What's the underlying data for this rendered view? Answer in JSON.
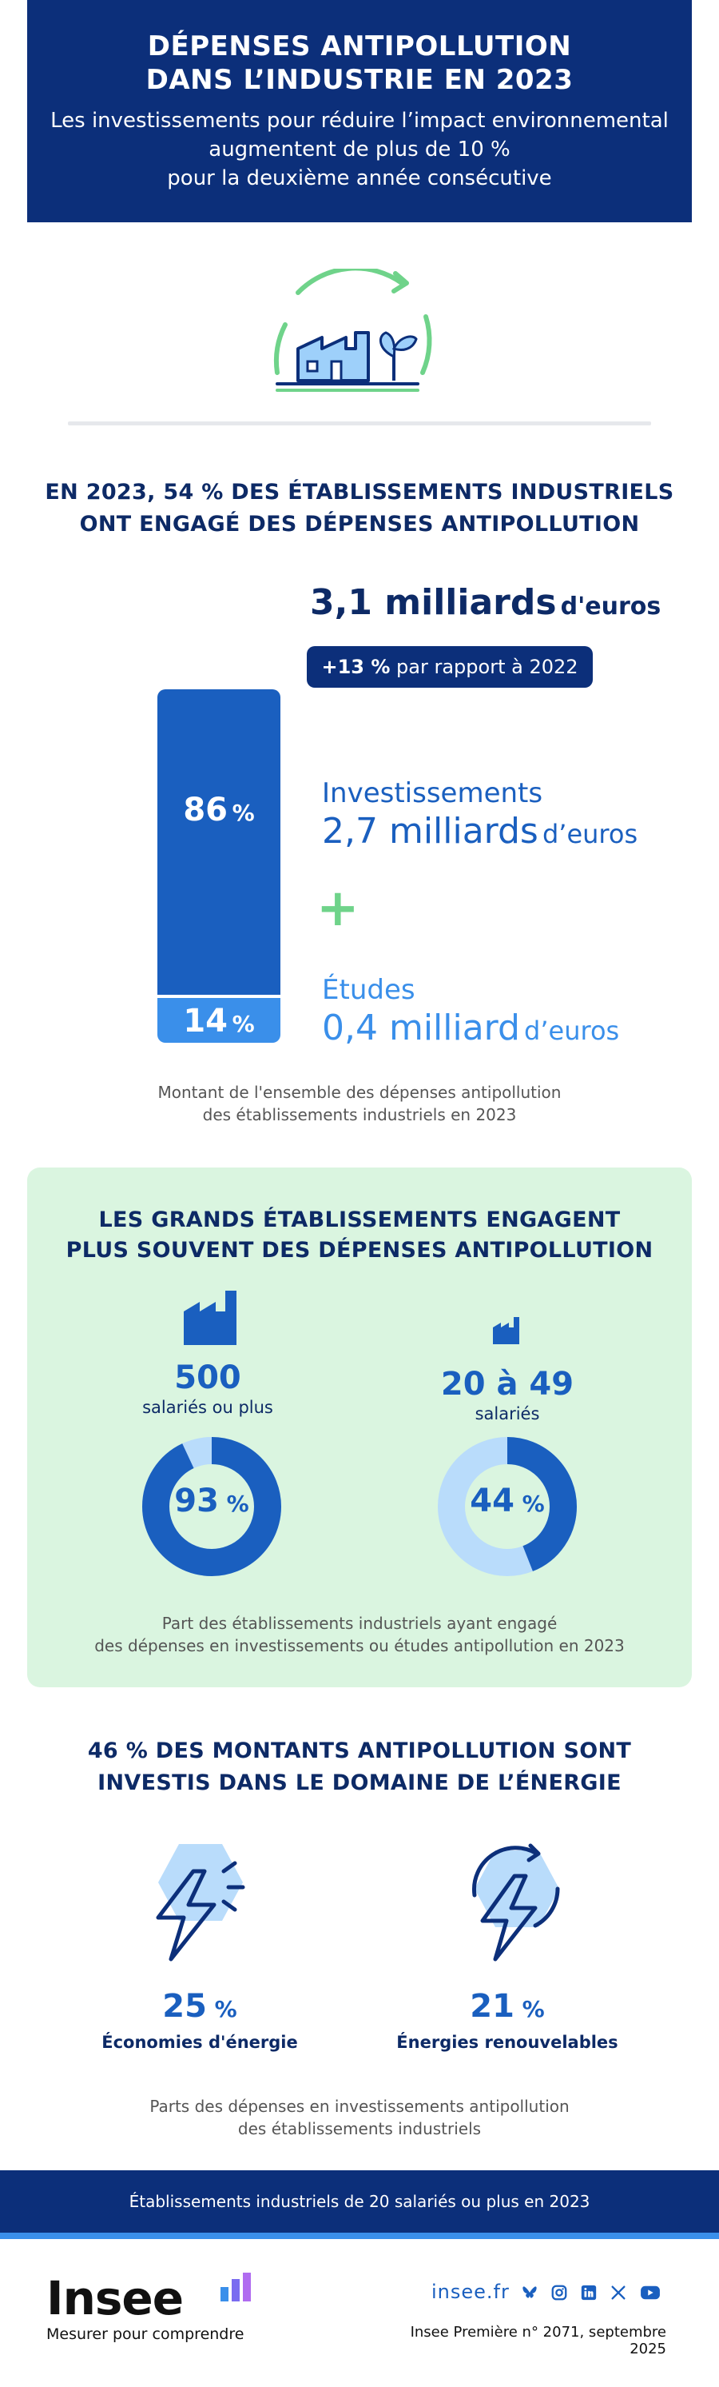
{
  "header": {
    "title_line1": "DÉPENSES ANTIPOLLUTION",
    "title_line2": "DANS L’INDUSTRIE EN 2023",
    "subtitle_line1": "Les investissements pour réduire l’impact environnemental",
    "subtitle_line2": "augmentent de plus de 10 %",
    "subtitle_line3": "pour la deuxième année consécutive"
  },
  "section1": {
    "title_line1": "EN 2023, 54 % DES ÉTABLISSEMENTS INDUSTRIELS",
    "title_line2": "ONT ENGAGÉ DES DÉPENSES ANTIPOLLUTION",
    "total_value": "3,1 milliards",
    "total_unit": "d'euros",
    "change_pct": "+13 %",
    "change_text": "par rapport à 2022",
    "bar_invest_pct": "86",
    "bar_etudes_pct": "14",
    "pct_sign": "%",
    "invest_label": "Investissements",
    "invest_value": "2,7 milliards",
    "invest_unit": "d’euros",
    "plus_sign": "+",
    "etudes_label": "Études",
    "etudes_value": "0,4 milliard",
    "etudes_unit": "d’euros",
    "caption_line1": "Montant de l'ensemble des dépenses antipollution",
    "caption_line2": "des établissements industriels en 2023"
  },
  "section2": {
    "title_line1": "LES GRANDS ÉTABLISSEMENTS ENGAGENT",
    "title_line2": "PLUS SOUVENT DES DÉPENSES ANTIPOLLUTION",
    "left_size": "500",
    "left_label": "salariés ou plus",
    "left_pct": "93",
    "left_fraction": 0.93,
    "right_size": "20 à 49",
    "right_label": "salariés",
    "right_pct": "44",
    "right_fraction": 0.44,
    "pct_sign": "%",
    "caption_line1": "Part des établissements industriels ayant engagé",
    "caption_line2": "des dépenses en investissements ou études antipollution en 2023",
    "colors": {
      "filled": "#1a5fbf",
      "empty": "#b9dcfb"
    }
  },
  "section3": {
    "title_line1": "46 % DES MONTANTS ANTIPOLLUTION SONT",
    "title_line2": "INVESTIS DANS LE DOMAINE DE L’ÉNERGIE",
    "left_pct": "25",
    "left_label": "Économies d'énergie",
    "right_pct": "21",
    "right_label": "Énergies renouvelables",
    "pct_sign": "%",
    "caption_line1": "Parts des dépenses en investissements antipollution",
    "caption_line2": "des établissements industriels"
  },
  "footer": {
    "scope": "Établissements industriels de 20 salariés ou plus en 2023",
    "logo": "Insee",
    "tagline": "Mesurer pour comprendre",
    "site": "insee.fr",
    "reference": "Insee Première n° 2071, septembre 2025",
    "social_icons": [
      "bluesky-icon",
      "instagram-icon",
      "linkedin-icon",
      "x-icon",
      "youtube-icon"
    ]
  }
}
